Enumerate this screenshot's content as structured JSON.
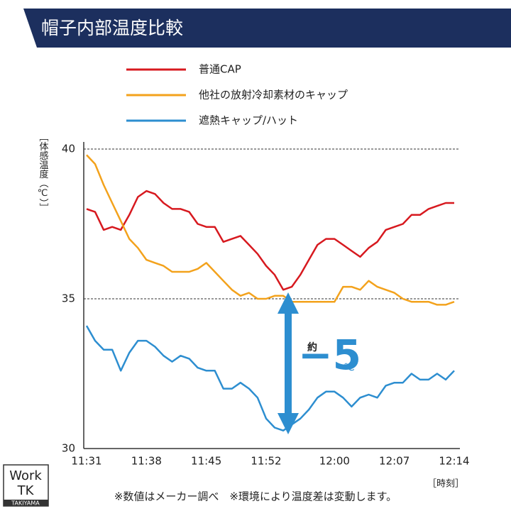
{
  "chart_data": {
    "type": "line",
    "title": "帽子内部温度比較",
    "y_label": "［体感温度（℃）］",
    "x_label": "［時刻］",
    "categories": [
      "11:31",
      null,
      null,
      null,
      null,
      null,
      null,
      "11:38",
      null,
      null,
      null,
      null,
      null,
      null,
      "11:45",
      null,
      null,
      null,
      null,
      null,
      null,
      "11:52",
      null,
      null,
      null,
      null,
      null,
      null,
      null,
      "12:00",
      null,
      null,
      null,
      null,
      null,
      null,
      "12:07",
      null,
      null,
      null,
      null,
      null,
      null,
      "12:14"
    ],
    "series": [
      {
        "name": "普通CAP",
        "color": "#d7191f",
        "values": [
          38.0,
          37.9,
          37.3,
          37.4,
          37.3,
          37.8,
          38.4,
          38.6,
          38.5,
          38.2,
          38.0,
          38.0,
          37.9,
          37.5,
          37.4,
          37.4,
          36.9,
          37.0,
          37.1,
          36.8,
          36.5,
          36.1,
          35.8,
          35.3,
          35.4,
          35.8,
          36.3,
          36.8,
          37.0,
          37.0,
          36.8,
          36.6,
          36.4,
          36.7,
          36.9,
          37.3,
          37.4,
          37.5,
          37.8,
          37.8,
          38.0,
          38.1,
          38.2,
          38.2
        ]
      },
      {
        "name": "他社の放射冷却素材のキャップ",
        "color": "#f3a21c",
        "values": [
          39.8,
          39.5,
          38.8,
          38.2,
          37.6,
          37.0,
          36.7,
          36.3,
          36.2,
          36.1,
          35.9,
          35.9,
          35.9,
          36.0,
          36.2,
          35.9,
          35.6,
          35.3,
          35.1,
          35.2,
          35.0,
          35.0,
          35.1,
          35.1,
          34.9,
          34.9,
          34.9,
          34.9,
          34.9,
          34.9,
          35.4,
          35.4,
          35.3,
          35.6,
          35.4,
          35.3,
          35.2,
          35.0,
          34.9,
          34.9,
          34.9,
          34.8,
          34.8,
          34.9
        ]
      },
      {
        "name": "遮熱キャップ/ハット",
        "color": "#2d8ed0",
        "values": [
          34.1,
          33.6,
          33.3,
          33.3,
          32.6,
          33.2,
          33.6,
          33.6,
          33.4,
          33.1,
          32.9,
          33.1,
          33.0,
          32.7,
          32.6,
          32.6,
          32.0,
          32.0,
          32.2,
          32.0,
          31.7,
          31.0,
          30.7,
          30.6,
          30.8,
          31.0,
          31.3,
          31.7,
          31.9,
          31.9,
          31.7,
          31.4,
          31.7,
          31.8,
          31.7,
          32.1,
          32.2,
          32.2,
          32.5,
          32.3,
          32.3,
          32.5,
          32.3,
          32.6
        ]
      }
    ],
    "ylim": [
      30,
      40
    ],
    "yticks": [
      30,
      35,
      40
    ],
    "grid": true,
    "annotation": {
      "prefix": "約",
      "value": "−5",
      "unit": "℃"
    },
    "footnote": "※数値はメーカー調べ　※環境により温度差は変動します。",
    "logo": {
      "line1": "Work",
      "line2": "TK",
      "line3": "TAKIYAMA"
    }
  }
}
